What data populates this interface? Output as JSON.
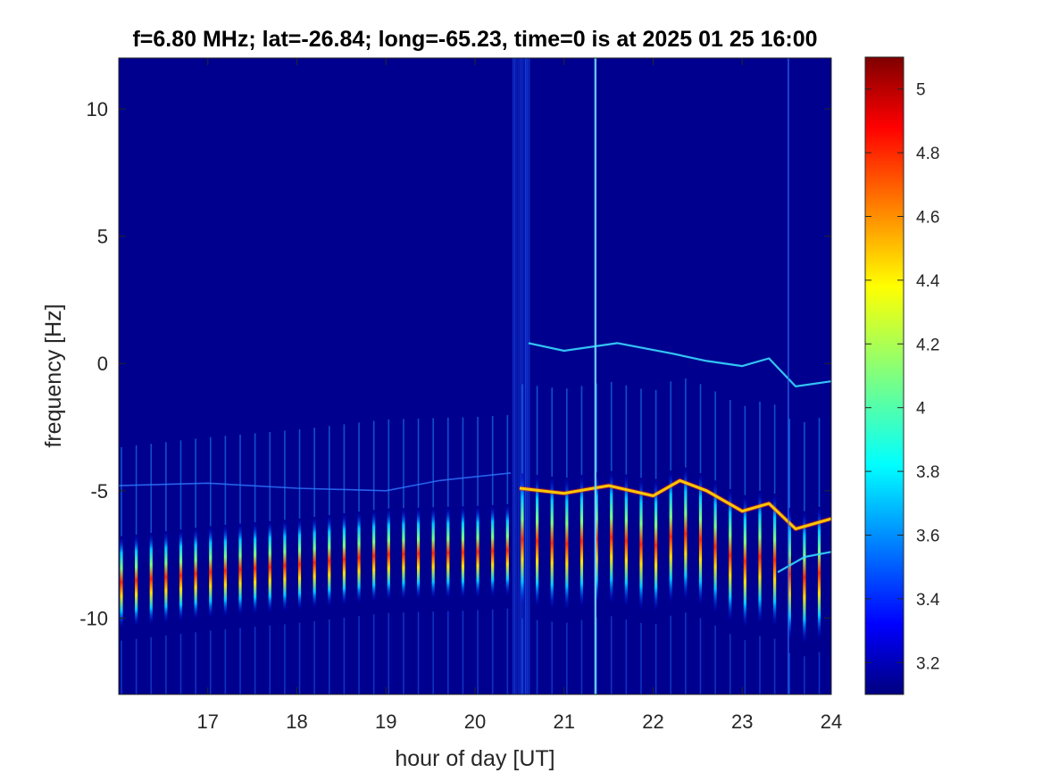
{
  "chart_data": {
    "type": "heatmap",
    "title": "f=6.80 MHz;  lat=-26.84; long=-65.23, time=0 is at 2025 01 25 16:00",
    "xlabel": "hour of day [UT]",
    "ylabel": "frequency [Hz]",
    "xlim": [
      16,
      24
    ],
    "ylim": [
      -13,
      12
    ],
    "xticks": [
      17,
      18,
      19,
      20,
      21,
      22,
      23,
      24
    ],
    "yticks": [
      -10,
      -5,
      0,
      5,
      10
    ],
    "grid": false,
    "colormap": "jet",
    "colorbar": {
      "range": [
        3.1,
        5.1
      ],
      "ticks": [
        3.2,
        3.4,
        3.6,
        3.8,
        4,
        4.2,
        4.4,
        4.6,
        4.8,
        5
      ],
      "tick_labels": [
        "3.2",
        "3.4",
        "3.6",
        "3.8",
        "4",
        "4.2",
        "4.4",
        "4.6",
        "4.8",
        "5"
      ]
    },
    "pulse_period_hours": 0.1667,
    "features": [
      {
        "kind": "strong-band",
        "x": [
          16,
          17,
          18,
          19,
          20,
          20.5
        ],
        "center": [
          -8.6,
          -8.2,
          -7.9,
          -7.5,
          -7.4,
          -7.3
        ],
        "halfwidth": 1.8
      },
      {
        "kind": "main-trace",
        "x": [
          20.5,
          21,
          21.5,
          22,
          22.3,
          22.6,
          23,
          23.3,
          23.6,
          24
        ],
        "center": [
          -4.9,
          -5.1,
          -4.8,
          -5.2,
          -4.6,
          -5.0,
          -5.8,
          -5.5,
          -6.5,
          -6.1
        ]
      },
      {
        "kind": "upper-trace",
        "x": [
          20.6,
          21,
          21.6,
          22.2,
          22.6,
          23,
          23.3,
          23.6,
          24
        ],
        "center": [
          0.8,
          0.5,
          0.8,
          0.4,
          0.1,
          -0.1,
          0.2,
          -0.9,
          -0.7
        ]
      },
      {
        "kind": "lower-trace",
        "x": [
          23.4,
          23.7,
          24
        ],
        "center": [
          -8.2,
          -7.6,
          -7.4
        ]
      },
      {
        "kind": "faint-trace",
        "x": [
          16,
          17,
          18,
          19,
          19.6,
          20.4
        ],
        "center": [
          -4.8,
          -4.7,
          -4.9,
          -5.0,
          -4.6,
          -4.3
        ]
      },
      {
        "kind": "noise-column",
        "x": [
          20.42,
          20.62
        ]
      },
      {
        "kind": "vertical-line",
        "x": [
          21.35
        ]
      },
      {
        "kind": "vertical-line",
        "x": [
          23.52
        ]
      }
    ]
  },
  "colors": {
    "background": "#00008f",
    "axis": "#262626"
  }
}
